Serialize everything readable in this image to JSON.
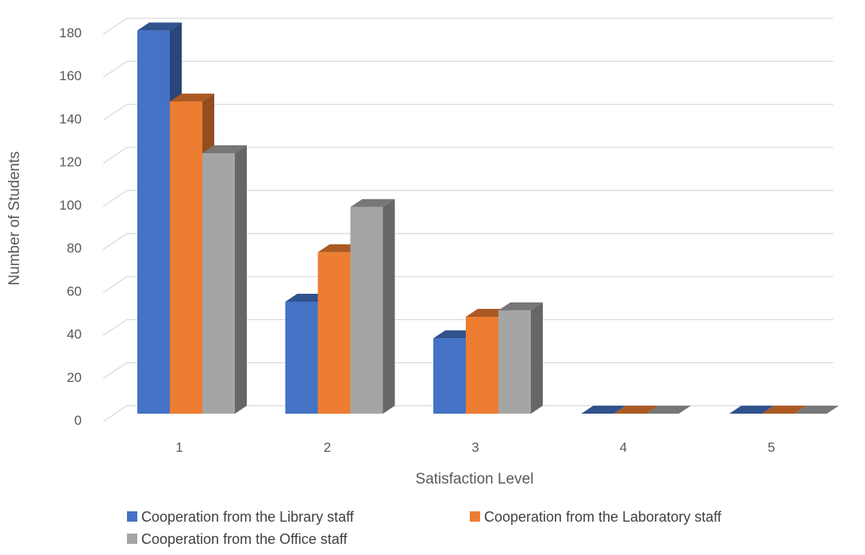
{
  "chart_data": {
    "type": "bar",
    "subtype": "3d-clustered-column",
    "title": "",
    "xlabel": "Satisfaction Level",
    "ylabel": "Number of Students",
    "categories": [
      "1",
      "2",
      "3",
      "4",
      "5"
    ],
    "ylim": [
      0,
      180
    ],
    "yticks": [
      0,
      20,
      40,
      60,
      80,
      100,
      120,
      140,
      160,
      180
    ],
    "grid": true,
    "legend_position": "bottom",
    "series": [
      {
        "name": "Cooperation from the Library staff",
        "color": "#4472C4",
        "values": [
          178,
          52,
          35,
          0,
          0
        ]
      },
      {
        "name": "Cooperation from the Laboratory staff",
        "color": "#ED7D31",
        "values": [
          145,
          75,
          45,
          0,
          0
        ]
      },
      {
        "name": "Cooperation from the Office staff",
        "color": "#A5A5A5",
        "values": [
          121,
          96,
          48,
          0,
          0
        ]
      }
    ]
  }
}
